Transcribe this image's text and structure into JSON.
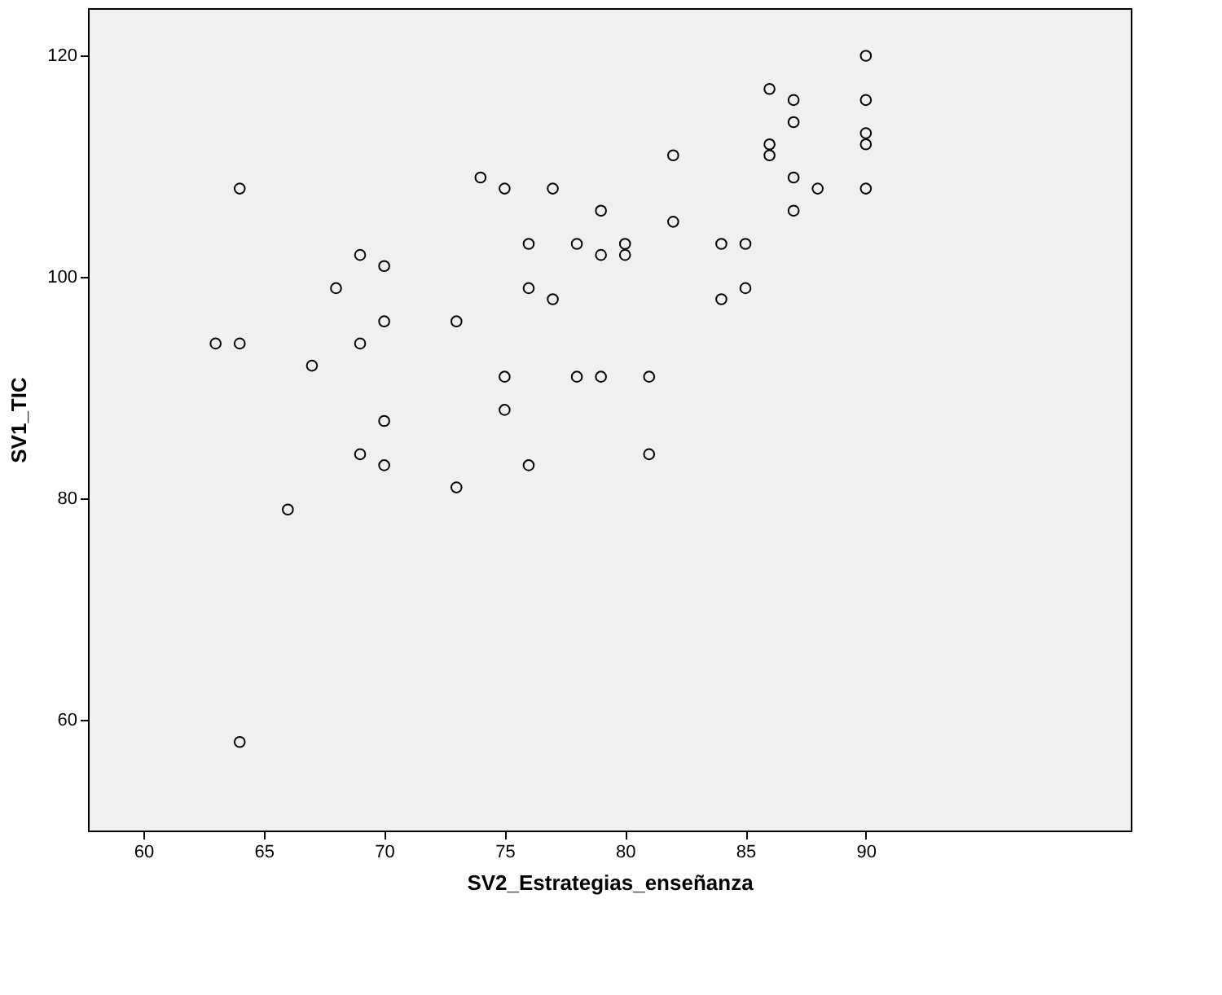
{
  "chart_data": {
    "type": "scatter",
    "xlabel": "SV2_Estrategias_enseñanza",
    "ylabel": "SV1_TIC",
    "x": [
      63,
      64,
      64,
      64,
      66,
      67,
      68,
      69,
      69,
      69,
      70,
      70,
      70,
      70,
      73,
      73,
      74,
      75,
      75,
      75,
      76,
      76,
      76,
      77,
      77,
      78,
      78,
      79,
      79,
      79,
      80,
      80,
      81,
      81,
      82,
      82,
      84,
      84,
      85,
      85,
      86,
      86,
      86,
      87,
      87,
      87,
      87,
      88,
      90,
      90,
      90,
      90,
      90
    ],
    "series": [
      {
        "color": "#000000",
        "values": [
          94,
          108,
          94,
          58,
          79,
          92,
          99,
          102,
          94,
          84,
          101,
          96,
          87,
          83,
          96,
          81,
          109,
          108,
          91,
          88,
          103,
          99,
          83,
          108,
          98,
          103,
          91,
          106,
          102,
          91,
          103,
          102,
          91,
          84,
          111,
          105,
          103,
          98,
          103,
          99,
          117,
          112,
          111,
          116,
          114,
          109,
          106,
          108,
          120,
          116,
          113,
          112,
          108
        ]
      }
    ],
    "xlim": [
      57.7,
      101
    ],
    "ylim": [
      50,
      124.3
    ],
    "xticks": [
      60,
      65,
      70,
      75,
      80,
      85,
      90
    ],
    "yticks": [
      60,
      80,
      100,
      120
    ],
    "grid": false,
    "marker": "circle"
  }
}
